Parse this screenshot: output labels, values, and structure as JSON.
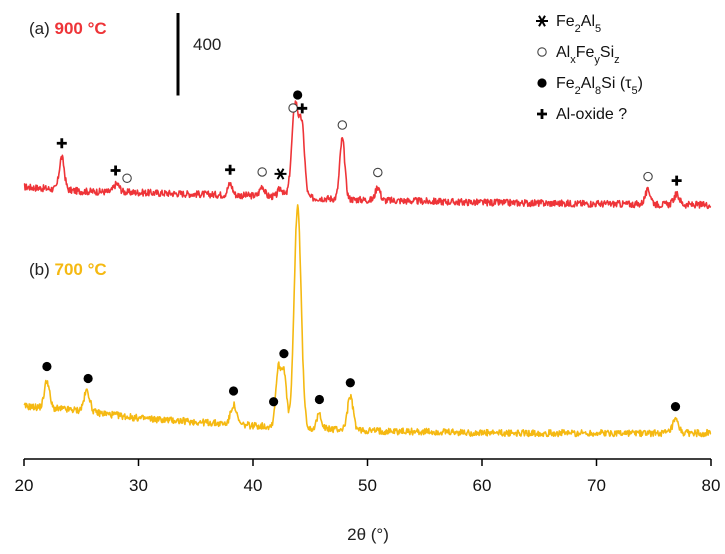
{
  "chart_data": {
    "type": "line",
    "title": "",
    "xlabel": "2θ (°)",
    "ylabel": "",
    "xlim": [
      20,
      80
    ],
    "xticks": [
      20,
      30,
      40,
      50,
      60,
      70,
      80
    ],
    "grid": false,
    "legend_position": "top-right",
    "colors": {
      "a": "#ee3438",
      "b": "#f5b912"
    },
    "scale_bar": {
      "label": "400",
      "intensity": 400
    },
    "series": [
      {
        "id": "a",
        "prefix": "(a) ",
        "temp": "900 °C",
        "color": "#ee3438",
        "baseline": [
          [
            20,
            370
          ],
          [
            25,
            300
          ],
          [
            30,
            280
          ],
          [
            40,
            230
          ],
          [
            50,
            160
          ],
          [
            60,
            120
          ],
          [
            70,
            100
          ],
          [
            80,
            80
          ]
        ],
        "peaks": [
          {
            "x": 23.3,
            "h": 520,
            "w": 0.22
          },
          {
            "x": 28.1,
            "h": 130,
            "w": 0.25
          },
          {
            "x": 38.0,
            "h": 180,
            "w": 0.2
          },
          {
            "x": 40.8,
            "h": 160,
            "w": 0.2
          },
          {
            "x": 42.4,
            "h": 140,
            "w": 0.2
          },
          {
            "x": 43.7,
            "h": 1500,
            "w": 0.3
          },
          {
            "x": 44.3,
            "h": 1000,
            "w": 0.22
          },
          {
            "x": 47.8,
            "h": 960,
            "w": 0.22
          },
          {
            "x": 50.9,
            "h": 220,
            "w": 0.2
          },
          {
            "x": 74.5,
            "h": 220,
            "w": 0.25
          },
          {
            "x": 77.0,
            "h": 160,
            "w": 0.25
          }
        ],
        "noise": 55
      },
      {
        "id": "b",
        "prefix": "(b) ",
        "temp": "700 °C",
        "color": "#f5b912",
        "baseline": [
          [
            20,
            540
          ],
          [
            25,
            470
          ],
          [
            30,
            350
          ],
          [
            40,
            230
          ],
          [
            50,
            150
          ],
          [
            60,
            110
          ],
          [
            70,
            110
          ],
          [
            80,
            110
          ]
        ],
        "peaks": [
          {
            "x": 22.0,
            "h": 440,
            "w": 0.22
          },
          {
            "x": 25.5,
            "h": 330,
            "w": 0.25
          },
          {
            "x": 38.3,
            "h": 310,
            "w": 0.25
          },
          {
            "x": 42.2,
            "h": 900,
            "w": 0.22
          },
          {
            "x": 42.7,
            "h": 880,
            "w": 0.22
          },
          {
            "x": 43.9,
            "h": 3550,
            "w": 0.3
          },
          {
            "x": 45.8,
            "h": 240,
            "w": 0.2
          },
          {
            "x": 48.5,
            "h": 530,
            "w": 0.25
          },
          {
            "x": 76.9,
            "h": 200,
            "w": 0.25
          }
        ],
        "noise": 55
      }
    ],
    "markers": [
      {
        "series": "a",
        "x": 23.3,
        "symbol": "cross"
      },
      {
        "series": "a",
        "x": 28.0,
        "symbol": "cross"
      },
      {
        "series": "a",
        "x": 29.0,
        "symbol": "open"
      },
      {
        "series": "a",
        "x": 38.0,
        "symbol": "cross"
      },
      {
        "series": "a",
        "x": 40.8,
        "symbol": "open"
      },
      {
        "series": "a",
        "x": 42.4,
        "symbol": "star"
      },
      {
        "series": "a",
        "x": 43.5,
        "symbol": "open"
      },
      {
        "series": "a",
        "x": 44.3,
        "symbol": "cross"
      },
      {
        "series": "a",
        "x": 47.8,
        "symbol": "open"
      },
      {
        "series": "a",
        "x": 50.9,
        "symbol": "open"
      },
      {
        "series": "a",
        "x": 74.5,
        "symbol": "open"
      },
      {
        "series": "a",
        "x": 77.0,
        "symbol": "cross"
      },
      {
        "series": "a",
        "x": 43.9,
        "symbol": "filled"
      },
      {
        "series": "b",
        "x": 22.0,
        "symbol": "filled"
      },
      {
        "series": "b",
        "x": 25.6,
        "symbol": "filled"
      },
      {
        "series": "b",
        "x": 38.3,
        "symbol": "filled"
      },
      {
        "series": "b",
        "x": 41.8,
        "symbol": "filled"
      },
      {
        "series": "b",
        "x": 42.7,
        "symbol": "filled"
      },
      {
        "series": "b",
        "x": 45.8,
        "symbol": "filled"
      },
      {
        "series": "b",
        "x": 48.5,
        "symbol": "filled"
      },
      {
        "series": "b",
        "x": 76.9,
        "symbol": "filled"
      }
    ],
    "legend": [
      {
        "symbol": "star",
        "parts": [
          [
            "Fe",
            ""
          ],
          [
            "2",
            "sub"
          ],
          [
            "Al",
            ""
          ],
          [
            "5",
            "sub"
          ]
        ]
      },
      {
        "symbol": "open",
        "parts": [
          [
            "Al",
            ""
          ],
          [
            "x",
            "sub"
          ],
          [
            "Fe",
            ""
          ],
          [
            "y",
            "sub"
          ],
          [
            "Si",
            ""
          ],
          [
            "z",
            "sub"
          ]
        ]
      },
      {
        "symbol": "filled",
        "parts": [
          [
            "Fe",
            ""
          ],
          [
            "2",
            "sub"
          ],
          [
            "Al",
            ""
          ],
          [
            "8",
            "sub"
          ],
          [
            "Si  (τ",
            ""
          ],
          [
            "5",
            "sub"
          ],
          [
            ")",
            ""
          ]
        ]
      },
      {
        "symbol": "cross",
        "parts": [
          [
            "Al-oxide  ?",
            ""
          ]
        ]
      }
    ]
  }
}
